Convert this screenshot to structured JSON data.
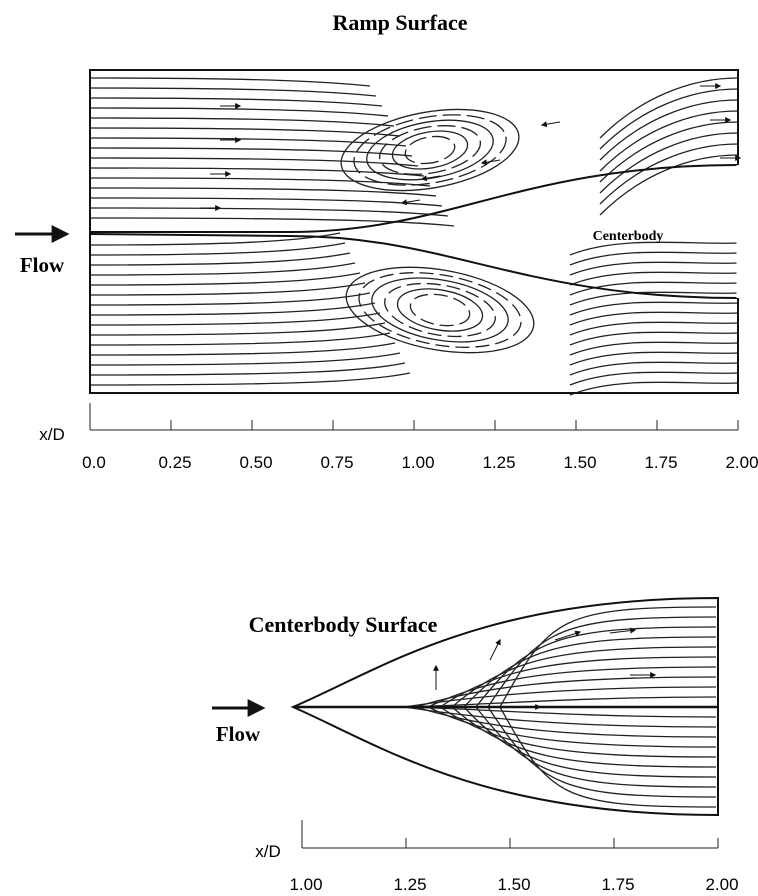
{
  "ramp": {
    "title": "Ramp Surface",
    "flow_label": "Flow",
    "centerbody_label": "Centerbody",
    "axis": {
      "label": "x/D",
      "ticks": [
        "0.0",
        "0.25",
        "0.50",
        "0.75",
        "1.00",
        "1.25",
        "1.50",
        "1.75",
        "2.00"
      ]
    }
  },
  "centerbody": {
    "title": "Centerbody Surface",
    "flow_label": "Flow",
    "axis": {
      "label": "x/D",
      "ticks": [
        "1.00",
        "1.25",
        "1.50",
        "1.75",
        "2.00"
      ]
    }
  }
}
